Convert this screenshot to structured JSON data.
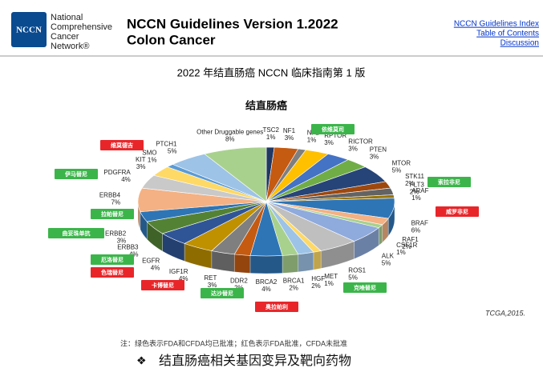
{
  "header": {
    "org_logo": "NCCN",
    "org_name": [
      "National",
      "Comprehensive",
      "Cancer",
      "Network®"
    ],
    "guideline": "NCCN Guidelines Version 1.2022",
    "topic": "Colon Cancer",
    "links": [
      "NCCN Guidelines Index",
      "Table of Contents",
      "Discussion"
    ]
  },
  "page_title": "2022 年结直肠癌 NCCN 临床指南第 1 版",
  "chart_data": {
    "type": "pie",
    "title": "结直肠癌",
    "categories": [
      "TSC2",
      "NF1",
      "NF2",
      "RPTOR",
      "RICTOR",
      "PTEN",
      "MTOR",
      "STK11",
      "FLT3",
      "ARAF",
      "BRAF",
      "RAF1",
      "CSF1R",
      "ALK",
      "ROS1",
      "MET",
      "HGF",
      "BRCA1",
      "BRCA2",
      "DDR2",
      "RET",
      "IGF1R",
      "EGFR",
      "ERBB3",
      "ERBB2",
      "ERBB4",
      "PDGFRA",
      "KIT",
      "SMO",
      "PTCH1",
      "Other Druggable genes"
    ],
    "values": [
      1,
      3,
      1,
      3,
      3,
      3,
      5,
      2,
      2,
      1,
      6,
      2,
      1,
      5,
      5,
      1,
      2,
      2,
      4,
      2,
      3,
      4,
      4,
      4,
      3,
      7,
      4,
      3,
      1,
      5,
      8
    ],
    "value_labels": [
      "1%",
      "3%",
      "1%",
      "3%",
      "3%",
      "3%",
      "5%",
      "2%",
      "2%",
      "1%",
      "6%",
      "2%",
      "1%",
      "5%",
      "5%",
      "1%",
      "2%",
      "2%",
      "4%",
      "2%",
      "3%",
      "4%",
      "4%",
      "4%",
      "3%",
      "7%",
      "4%",
      "3%",
      "1%",
      "5%",
      "8%"
    ],
    "colors": [
      "#1f3864",
      "#c55a11",
      "#7f7f7f",
      "#ffc000",
      "#4472c4",
      "#70ad47",
      "#264478",
      "#9e480e",
      "#636363",
      "#997300",
      "#2e75b6",
      "#f4b183",
      "#a9d18e",
      "#8faadc",
      "#bfbfbf",
      "#ffd966",
      "#9dc3e6",
      "#a9d18e",
      "#2e75b6",
      "#c55a11",
      "#7f7f7f",
      "#bf9000",
      "#2f5597",
      "#548235",
      "#2e75b6",
      "#f4b183",
      "#c9c9c9",
      "#ffd966",
      "#5b9bd5",
      "#9dc3e6",
      "#a9d18e"
    ],
    "source": "TCGA,2015."
  },
  "drugs": [
    "依维莫司",
    "维莫德吉",
    "伊马替尼",
    "索拉非尼",
    "威罗非尼",
    "拉帕替尼",
    "曲妥珠单抗",
    "厄洛替尼",
    "色瑞替尼",
    "卡博替尼",
    "克唑替尼",
    "达沙替尼",
    "奥拉帕利"
  ],
  "note": "注：绿色表示FDA和CFDA均已批准；红色表示FDA批准，CFDA未批准",
  "caption": "结直肠癌相关基因变异及靶向药物"
}
